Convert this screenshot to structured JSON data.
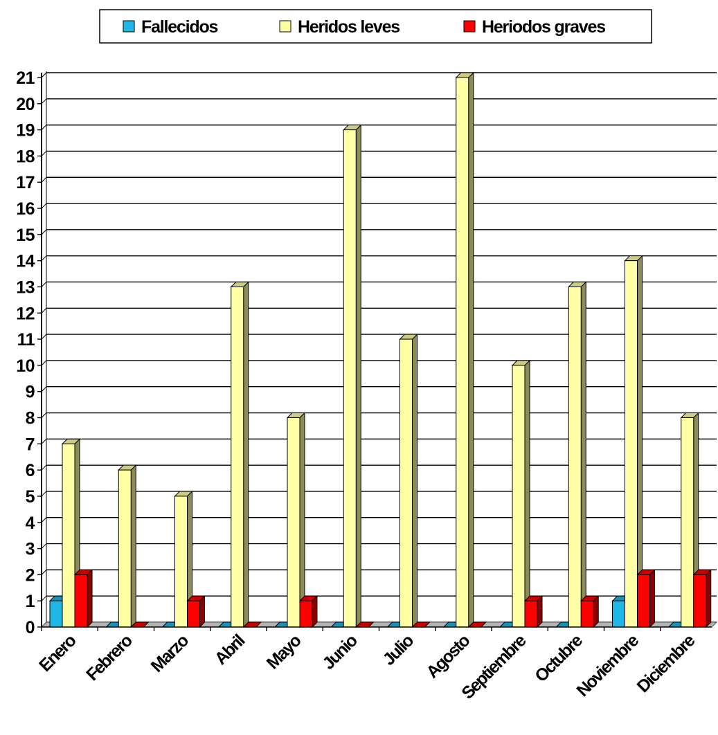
{
  "chart_data": {
    "type": "bar",
    "title": "",
    "xlabel": "",
    "ylabel": "",
    "categories": [
      "Enero",
      "Febrero",
      "Marzo",
      "Abril",
      "Mayo",
      "Junio",
      "Julio",
      "Agosto",
      "Septiembre",
      "Octubre",
      "Noviembre",
      "Diciembre"
    ],
    "series": [
      {
        "name": "Fallecidos",
        "color": "#1fb7e6",
        "values": [
          1,
          0,
          0,
          0,
          0,
          0,
          0,
          0,
          0,
          0,
          1,
          0
        ]
      },
      {
        "name": "Heridos leves",
        "color": "#ffffa6",
        "values": [
          7,
          6,
          5,
          13,
          8,
          19,
          11,
          21,
          10,
          13,
          14,
          8
        ]
      },
      {
        "name": "Heriodos graves",
        "color": "#ff0000",
        "values": [
          2,
          0,
          1,
          0,
          1,
          0,
          0,
          0,
          1,
          1,
          2,
          2
        ]
      }
    ],
    "ylim": [
      0,
      21
    ],
    "yticks": [
      0,
      1,
      2,
      3,
      4,
      5,
      6,
      7,
      8,
      9,
      10,
      11,
      12,
      13,
      14,
      15,
      16,
      17,
      18,
      19,
      20,
      21
    ],
    "grid": true,
    "legend_position": "top-center",
    "bar_style": "3d"
  }
}
